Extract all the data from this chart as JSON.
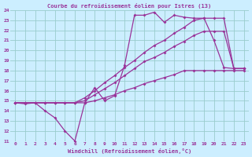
{
  "title": "Courbe du refroidissement éolien pour Istres (13)",
  "xlabel": "Windchill (Refroidissement éolien,°C)",
  "xlim": [
    -0.5,
    23.5
  ],
  "ylim": [
    11,
    24
  ],
  "xticks": [
    0,
    1,
    2,
    3,
    4,
    5,
    6,
    7,
    8,
    9,
    10,
    11,
    12,
    13,
    14,
    15,
    16,
    17,
    18,
    19,
    20,
    21,
    22,
    23
  ],
  "yticks": [
    11,
    12,
    13,
    14,
    15,
    16,
    17,
    18,
    19,
    20,
    21,
    22,
    23,
    24
  ],
  "bg_color": "#cceeff",
  "grid_color": "#99cccc",
  "line_color": "#993399",
  "line_width": 0.9,
  "marker": "D",
  "marker_size": 2.0,
  "series": [
    {
      "x": [
        0,
        1,
        2,
        3,
        4,
        5,
        6,
        7,
        8,
        9,
        10,
        11,
        12,
        13,
        14,
        15,
        16,
        17,
        18,
        19,
        20,
        21,
        22,
        23
      ],
      "y": [
        14.8,
        14.7,
        14.8,
        14.0,
        13.3,
        12.0,
        11.0,
        14.8,
        16.3,
        15.0,
        15.5,
        18.5,
        23.5,
        23.5,
        23.8,
        22.8,
        23.5,
        23.3,
        23.2,
        23.2,
        21.0,
        18.3,
        18.2,
        18.2
      ]
    },
    {
      "x": [
        0,
        1,
        2,
        3,
        4,
        5,
        6,
        7,
        8,
        9,
        10,
        11,
        12,
        13,
        14,
        15,
        16,
        17,
        18,
        19,
        20,
        21,
        22,
        23
      ],
      "y": [
        14.8,
        14.8,
        14.8,
        14.8,
        14.8,
        14.8,
        14.8,
        15.3,
        16.0,
        16.8,
        17.5,
        18.3,
        19.0,
        19.8,
        20.5,
        21.0,
        21.7,
        22.3,
        23.0,
        23.2,
        23.2,
        23.2,
        18.2,
        18.2
      ]
    },
    {
      "x": [
        0,
        1,
        2,
        3,
        4,
        5,
        6,
        7,
        8,
        9,
        10,
        11,
        12,
        13,
        14,
        15,
        16,
        17,
        18,
        19,
        20,
        21,
        22,
        23
      ],
      "y": [
        14.8,
        14.8,
        14.8,
        14.8,
        14.8,
        14.8,
        14.8,
        15.0,
        15.6,
        16.2,
        16.8,
        17.5,
        18.2,
        18.9,
        19.3,
        19.8,
        20.4,
        20.9,
        21.5,
        21.9,
        21.9,
        21.9,
        18.2,
        18.2
      ]
    },
    {
      "x": [
        0,
        1,
        2,
        3,
        4,
        5,
        6,
        7,
        8,
        9,
        10,
        11,
        12,
        13,
        14,
        15,
        16,
        17,
        18,
        19,
        20,
        21,
        22,
        23
      ],
      "y": [
        14.8,
        14.8,
        14.8,
        14.8,
        14.8,
        14.8,
        14.8,
        14.8,
        15.0,
        15.3,
        15.6,
        16.0,
        16.3,
        16.7,
        17.0,
        17.3,
        17.6,
        18.0,
        18.0,
        18.0,
        18.0,
        18.0,
        18.0,
        18.0
      ]
    }
  ]
}
